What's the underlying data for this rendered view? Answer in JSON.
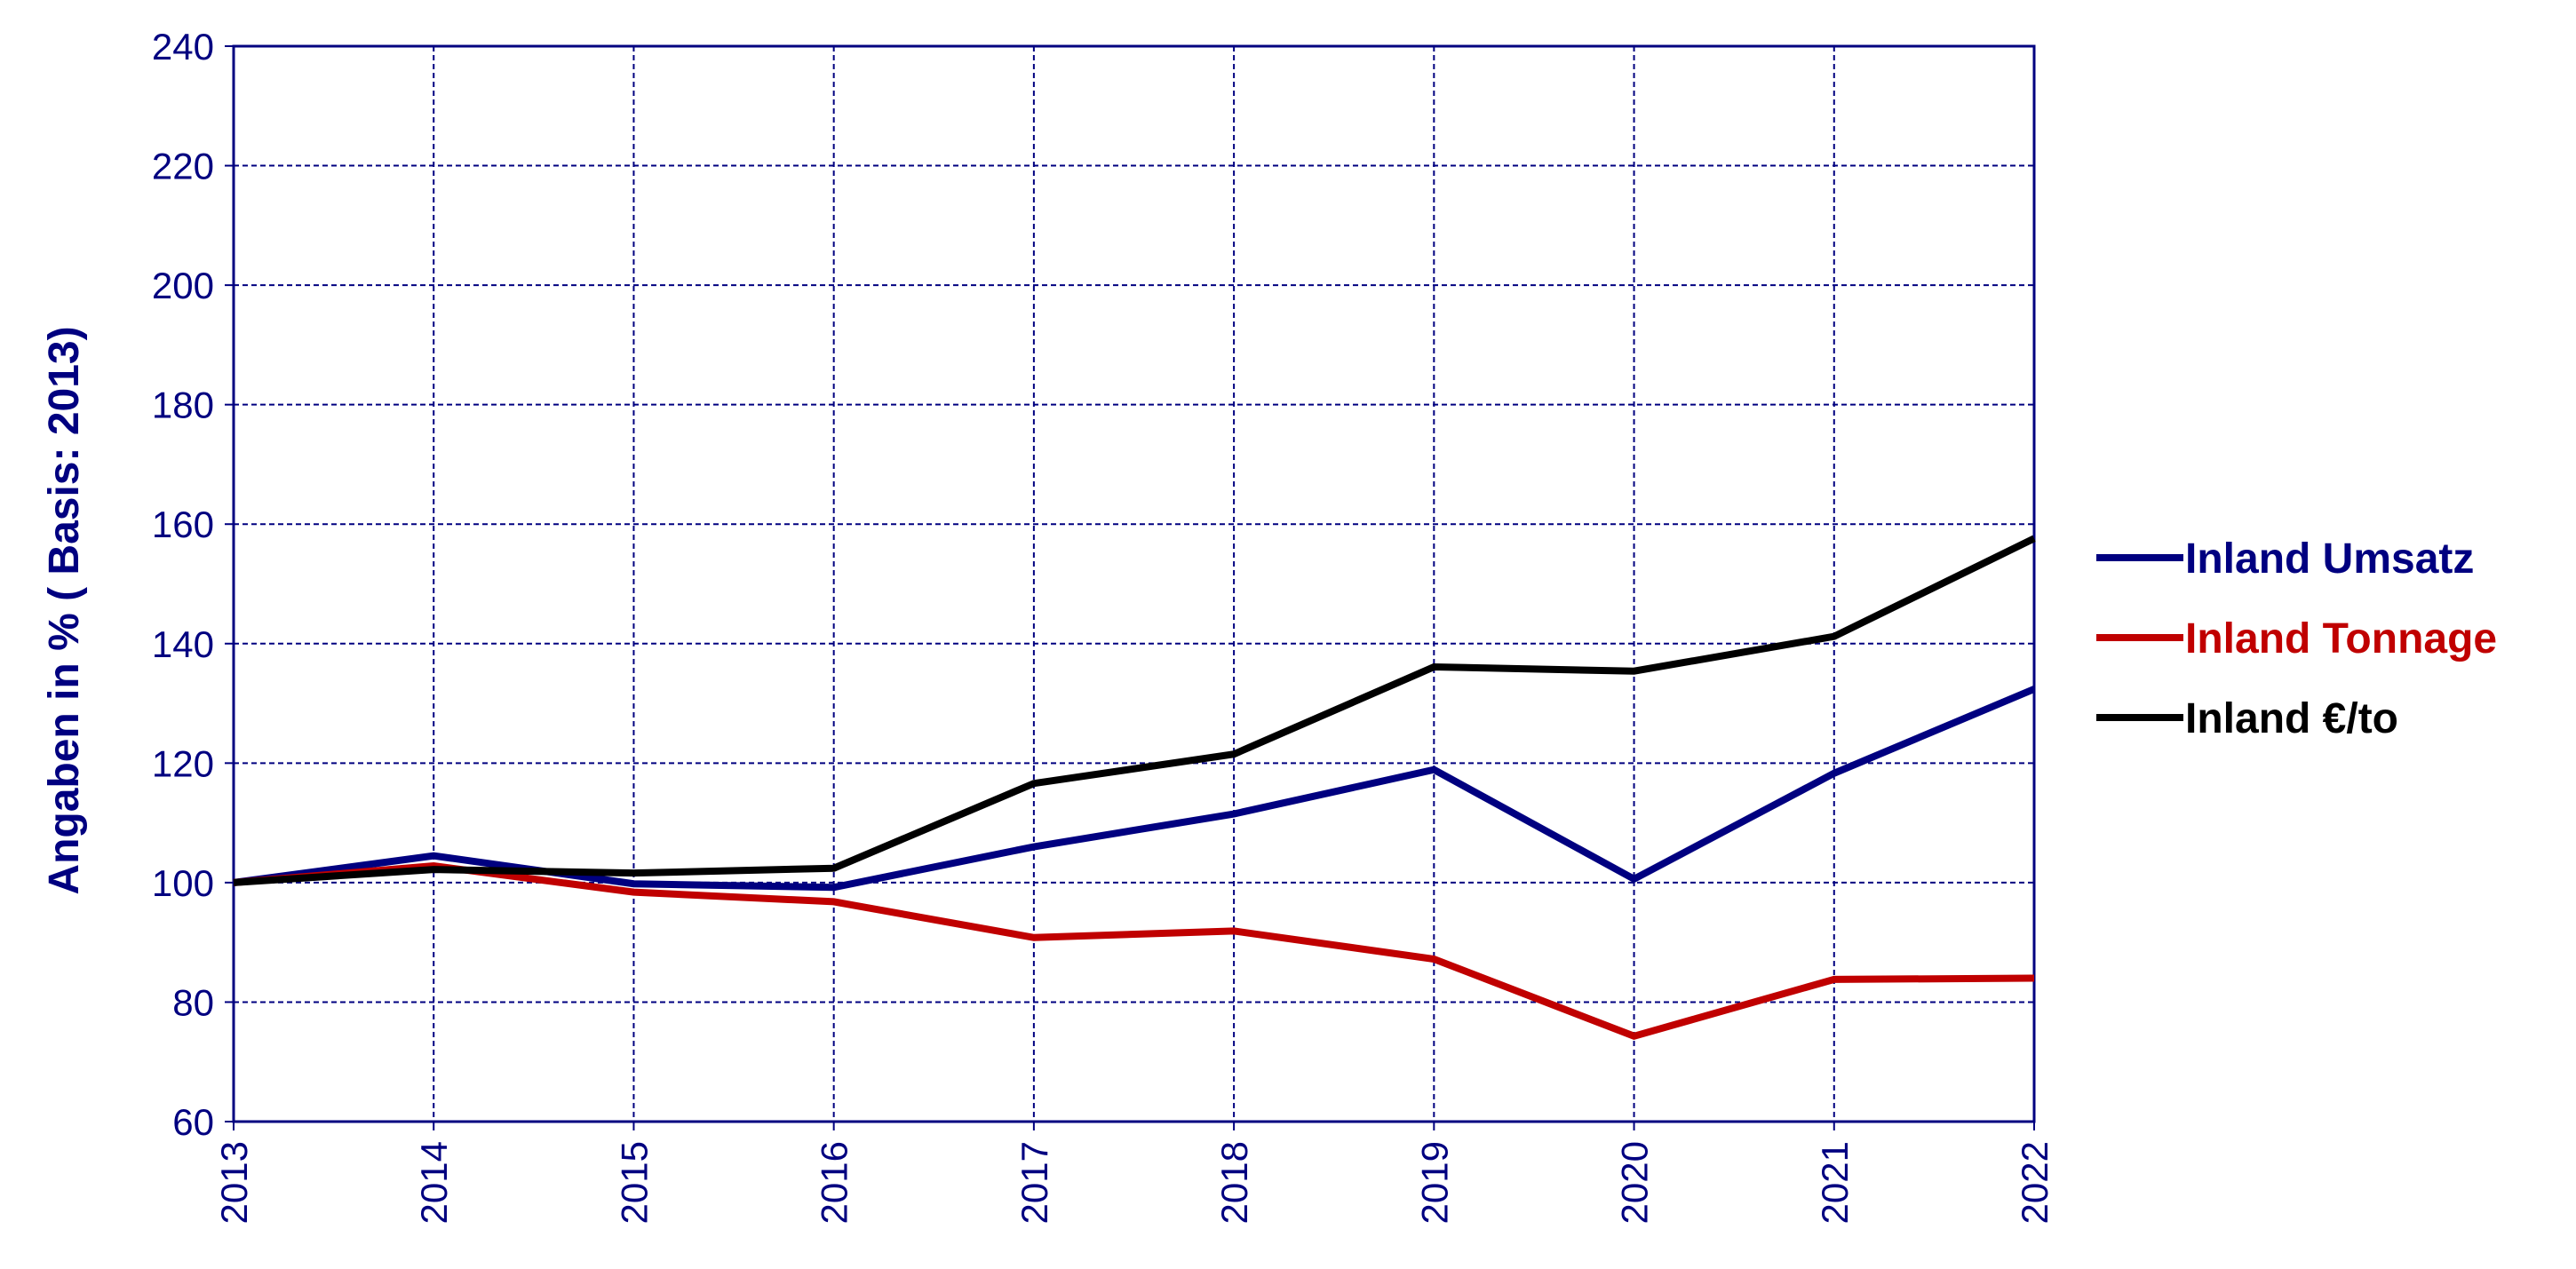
{
  "chart_data": {
    "type": "line",
    "title": "",
    "xlabel": "",
    "ylabel": "Angaben in % ( Basis: 2013)",
    "categories": [
      "2013",
      "2014",
      "2015",
      "2016",
      "2017",
      "2018",
      "2019",
      "2020",
      "2021",
      "2022"
    ],
    "y_ticks": [
      "60",
      "80",
      "100",
      "120",
      "140",
      "160",
      "180",
      "200",
      "220",
      "240"
    ],
    "ylim": [
      60,
      240
    ],
    "grid": true,
    "legend_position": "right",
    "series": [
      {
        "name": "Inland Umsatz",
        "color": "#000080",
        "values": [
          100,
          104.5,
          99.8,
          99.2,
          106,
          111.5,
          118.9,
          100.6,
          118.3,
          132.4
        ]
      },
      {
        "name": "Inland Tonnage",
        "color": "#c00000",
        "values": [
          100,
          102.8,
          98.4,
          96.8,
          90.8,
          91.9,
          87.2,
          74.3,
          83.8,
          84
        ]
      },
      {
        "name": "Inland €/to",
        "color": "#000000",
        "values": [
          100,
          102.2,
          101.6,
          102.4,
          116.6,
          121.5,
          136.1,
          135.4,
          141.2,
          157.6
        ]
      }
    ],
    "axis_color": "#000080",
    "grid_color": "#000080"
  }
}
